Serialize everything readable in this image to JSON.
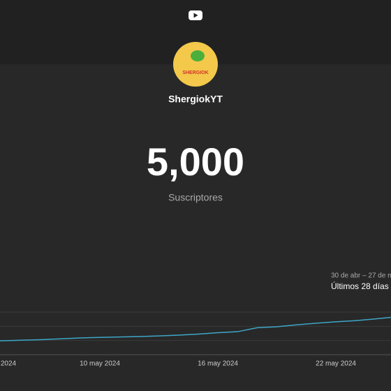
{
  "header": {
    "logo": "YouTube"
  },
  "channel": {
    "avatar_text": "SHERGIOK",
    "name": "ShergiokYT"
  },
  "counter": {
    "value": "5,000",
    "label": "Suscriptores"
  },
  "period": {
    "range": "30 de abr – 27 de m",
    "label": "Últimos 28 días"
  },
  "chart_data": {
    "type": "line",
    "categories": [
      "2024",
      null,
      null,
      null,
      null,
      null,
      "10 may 2024",
      null,
      null,
      null,
      null,
      null,
      "16 may 2024",
      null,
      null,
      null,
      null,
      null,
      "22 may 2024",
      null,
      null,
      null
    ],
    "series": [
      {
        "name": "Suscriptores",
        "color": "#3ea6c8",
        "values": [
          0.95,
          0.98,
          1.02,
          1.06,
          1.12,
          1.18,
          1.22,
          1.25,
          1.28,
          1.32,
          1.38,
          1.45,
          1.55,
          1.62,
          1.9,
          1.97,
          2.1,
          2.22,
          2.32,
          2.4,
          2.52,
          2.66
        ]
      }
    ],
    "ylim": [
      0,
      3
    ],
    "yticks": [
      0,
      1,
      2,
      3
    ],
    "grid": true
  }
}
